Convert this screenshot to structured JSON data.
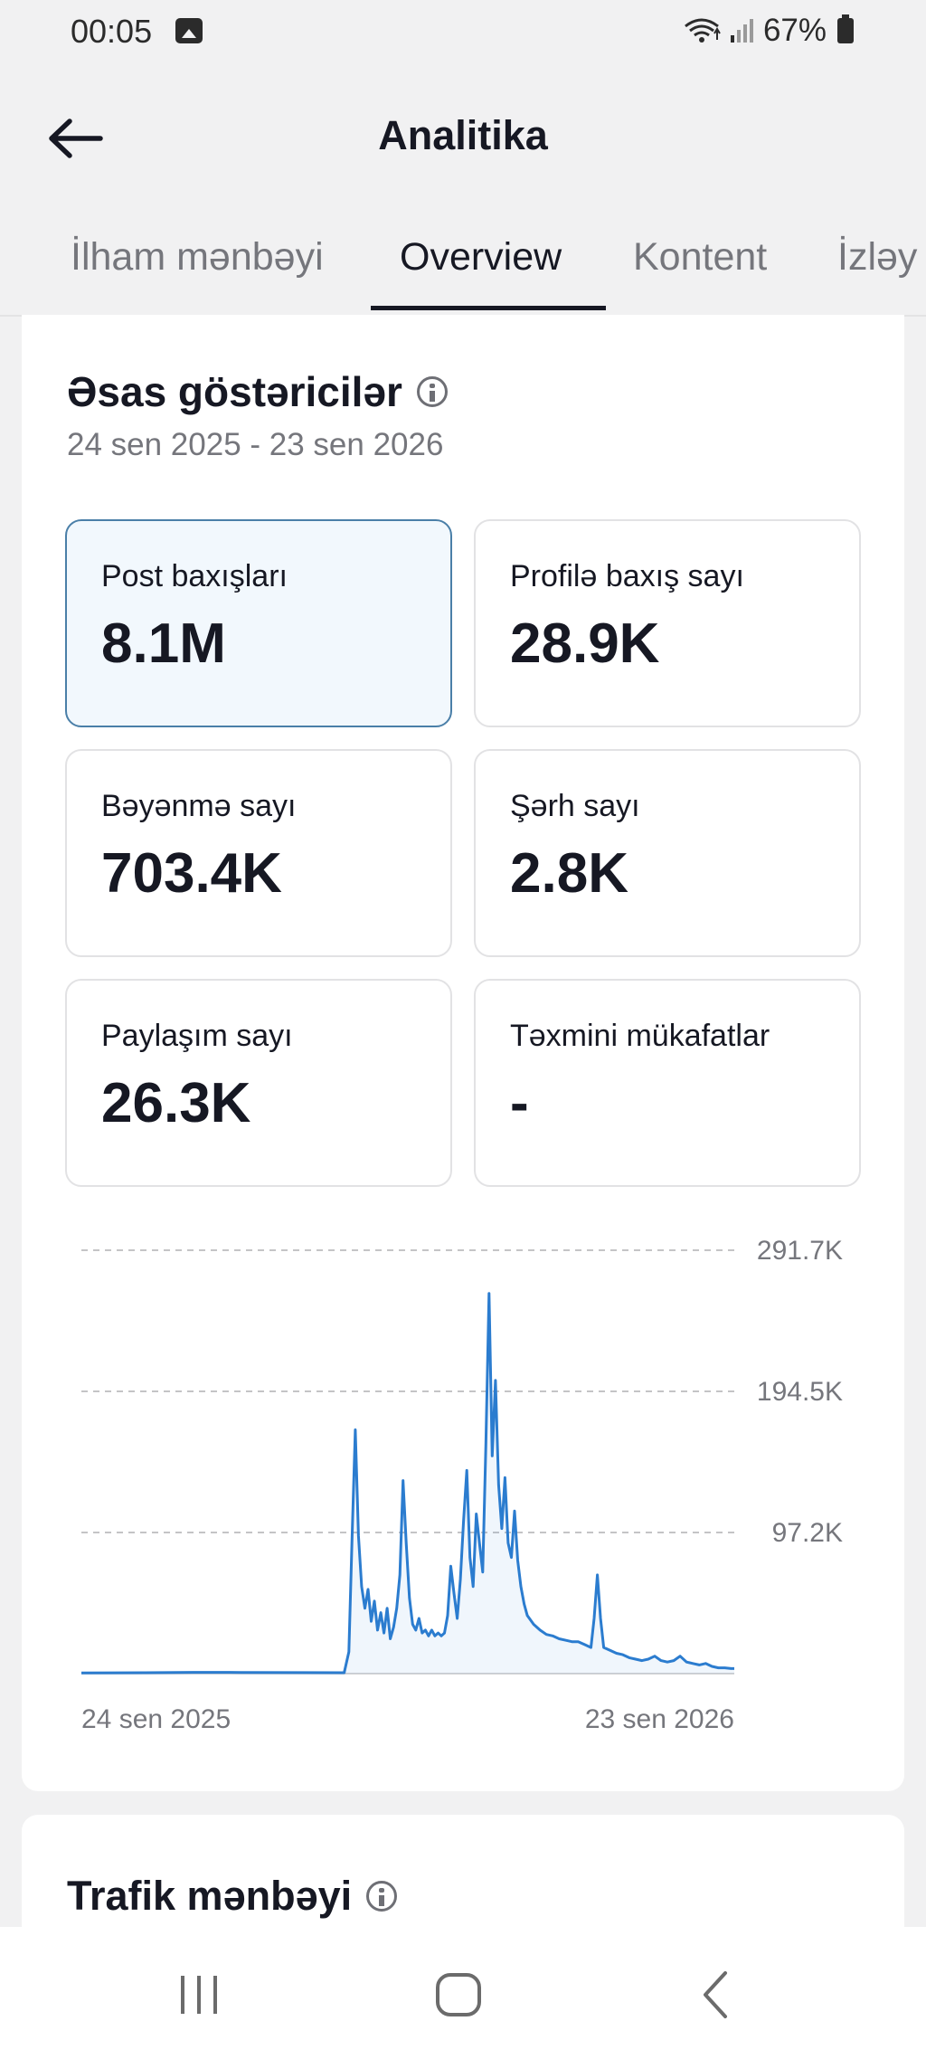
{
  "status_bar": {
    "time": "00:05",
    "battery": "67%",
    "icons": [
      "image-icon",
      "wifi-icon",
      "signal-icon",
      "battery-icon"
    ]
  },
  "header": {
    "title": "Analitika",
    "back_icon": "arrow-left-icon"
  },
  "tabs": [
    {
      "label": "İlham mənbəyi",
      "active": false
    },
    {
      "label": "Overview",
      "active": true
    },
    {
      "label": "Kontent",
      "active": false
    },
    {
      "label": "İzləy",
      "active": false
    }
  ],
  "key_metrics": {
    "title": "Əsas göstəricilər",
    "date_range": "24 sen 2025 - 23 sen 2026",
    "cards": [
      {
        "label": "Post baxışları",
        "value": "8.1M",
        "selected": true
      },
      {
        "label": "Profilə baxış sayı",
        "value": "28.9K",
        "selected": false
      },
      {
        "label": "Bəyənmə sayı",
        "value": "703.4K",
        "selected": false
      },
      {
        "label": "Şərh sayı",
        "value": "2.8K",
        "selected": false
      },
      {
        "label": "Paylaşım sayı",
        "value": "26.3K",
        "selected": false
      },
      {
        "label": "Təxmini mükafatlar",
        "value": "-",
        "selected": false
      }
    ]
  },
  "chart_data": {
    "type": "area",
    "title": "",
    "xlabel": "",
    "ylabel": "",
    "x_tick_labels": [
      "24 sen 2025",
      "23 sen 2026"
    ],
    "y_tick_labels": [
      "97.2K",
      "194.5K",
      "291.7K"
    ],
    "y_ticks": [
      97200,
      194500,
      291700
    ],
    "ylim": [
      0,
      291700
    ],
    "grid": true,
    "line_color": "#2b7ccf",
    "x_unit": "day",
    "series": [
      {
        "values": [
          [
            0,
            500
          ],
          [
            40,
            600
          ],
          [
            70,
            900
          ],
          [
            100,
            800
          ],
          [
            140,
            700
          ],
          [
            165,
            600
          ],
          [
            168,
            15000
          ],
          [
            170,
            95000
          ],
          [
            172,
            168000
          ],
          [
            174,
            95000
          ],
          [
            176,
            60000
          ],
          [
            178,
            45000
          ],
          [
            180,
            58000
          ],
          [
            182,
            36000
          ],
          [
            184,
            50000
          ],
          [
            186,
            30000
          ],
          [
            188,
            42000
          ],
          [
            190,
            28000
          ],
          [
            192,
            45000
          ],
          [
            194,
            24000
          ],
          [
            196,
            32000
          ],
          [
            198,
            45000
          ],
          [
            200,
            68000
          ],
          [
            202,
            133000
          ],
          [
            204,
            90000
          ],
          [
            206,
            52000
          ],
          [
            208,
            34000
          ],
          [
            210,
            30000
          ],
          [
            212,
            38000
          ],
          [
            214,
            28000
          ],
          [
            216,
            30000
          ],
          [
            218,
            26000
          ],
          [
            220,
            30000
          ],
          [
            222,
            26000
          ],
          [
            224,
            28000
          ],
          [
            226,
            26000
          ],
          [
            228,
            28000
          ],
          [
            230,
            40000
          ],
          [
            232,
            74000
          ],
          [
            234,
            55000
          ],
          [
            236,
            38000
          ],
          [
            238,
            65000
          ],
          [
            240,
            105000
          ],
          [
            242,
            140000
          ],
          [
            244,
            80000
          ],
          [
            246,
            60000
          ],
          [
            248,
            110000
          ],
          [
            250,
            90000
          ],
          [
            252,
            70000
          ],
          [
            254,
            158000
          ],
          [
            256,
            262000
          ],
          [
            258,
            150000
          ],
          [
            260,
            202000
          ],
          [
            262,
            130000
          ],
          [
            264,
            100000
          ],
          [
            266,
            135000
          ],
          [
            268,
            90000
          ],
          [
            270,
            80000
          ],
          [
            272,
            112000
          ],
          [
            274,
            78000
          ],
          [
            276,
            60000
          ],
          [
            278,
            48000
          ],
          [
            280,
            40000
          ],
          [
            284,
            34000
          ],
          [
            288,
            30000
          ],
          [
            292,
            27000
          ],
          [
            296,
            26000
          ],
          [
            300,
            24000
          ],
          [
            304,
            23000
          ],
          [
            308,
            22000
          ],
          [
            312,
            22000
          ],
          [
            316,
            20000
          ],
          [
            320,
            18000
          ],
          [
            322,
            38000
          ],
          [
            324,
            68000
          ],
          [
            326,
            38000
          ],
          [
            328,
            18000
          ],
          [
            332,
            16000
          ],
          [
            336,
            14000
          ],
          [
            340,
            13000
          ],
          [
            344,
            11000
          ],
          [
            348,
            10000
          ],
          [
            352,
            9000
          ],
          [
            356,
            10000
          ],
          [
            360,
            12000
          ],
          [
            364,
            9000
          ],
          [
            368,
            8000
          ],
          [
            372,
            9000
          ],
          [
            376,
            12000
          ],
          [
            380,
            8000
          ],
          [
            384,
            7000
          ],
          [
            388,
            6000
          ],
          [
            392,
            7000
          ],
          [
            396,
            5000
          ],
          [
            400,
            4000
          ],
          [
            404,
            4000
          ],
          [
            408,
            3500
          ],
          [
            410,
            3500
          ]
        ]
      }
    ],
    "x_range": [
      0,
      410
    ]
  },
  "traffic": {
    "title": "Trafik mənbəyi"
  },
  "nav_bar": {
    "buttons": [
      "recent-apps-icon",
      "home-icon",
      "back-nav-icon"
    ]
  }
}
